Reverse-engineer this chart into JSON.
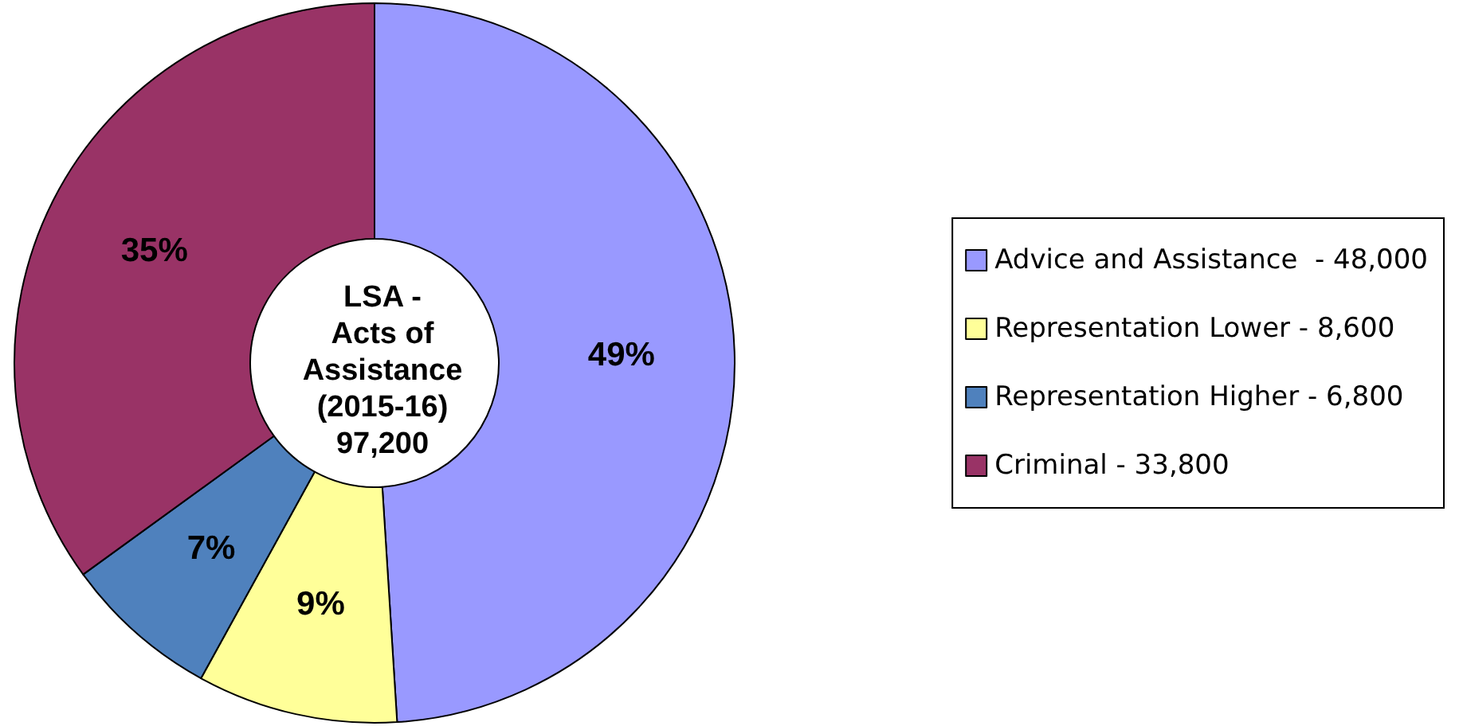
{
  "chart_data": {
    "type": "donut",
    "title": "LSA -\nActs of\nAssistance\n(2015-16)\n97,200",
    "categories": [
      "Advice and Assistance  - 48,000",
      "Representation Lower - 8,600",
      "Representation Higher - 6,800",
      "Criminal - 33,800"
    ],
    "values": [
      49,
      9,
      7,
      35
    ],
    "colors": [
      "#9999ff",
      "#ffff99",
      "#4f81bd",
      "#993366"
    ],
    "value_labels": [
      "49%",
      "9%",
      "7%",
      "35%"
    ],
    "legend": "right"
  }
}
